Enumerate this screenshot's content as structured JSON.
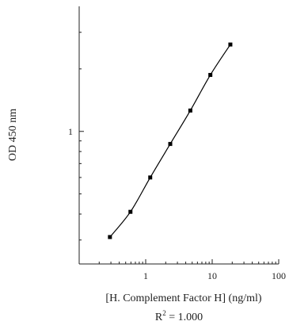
{
  "chart_data": {
    "type": "line",
    "xscale": "log",
    "yscale": "log",
    "xlim": [
      0.1,
      100
    ],
    "ylim": [
      0.23,
      4.0
    ],
    "xticks": [
      1,
      10,
      100
    ],
    "xtick_labels": [
      "1",
      "10",
      "100"
    ],
    "yticks": [
      1
    ],
    "ytick_labels": [
      "1"
    ],
    "xlabel": "[H. Complement Factor H] (ng/ml)",
    "ylabel": "OD 450 nm",
    "annotation_prefix": "R",
    "annotation_sup": "2",
    "annotation_suffix": " = 1.000",
    "grid": false,
    "series": [
      {
        "x": [
          0.29,
          0.59,
          1.17,
          2.34,
          4.69,
          9.38,
          18.75
        ],
        "y": [
          0.31,
          0.41,
          0.6,
          0.87,
          1.26,
          1.87,
          2.62
        ],
        "color": "#000000"
      }
    ]
  }
}
